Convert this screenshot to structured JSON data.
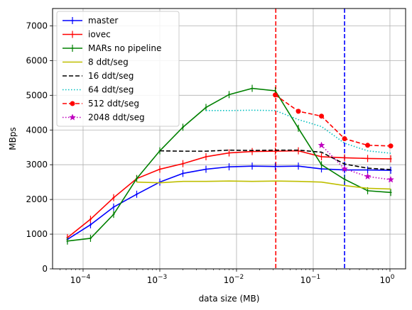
{
  "chart_data": {
    "type": "line",
    "xlabel": "data size (MB)",
    "ylabel": "MBps",
    "xscale": "log",
    "xlim": [
      4e-05,
      1.6
    ],
    "ylim": [
      0,
      7500
    ],
    "grid": true,
    "legend_position": "top-left",
    "y_ticks": [
      0,
      1000,
      2000,
      3000,
      4000,
      5000,
      6000,
      7000
    ],
    "x_ticks": [
      {
        "value": 0.0001,
        "base": "10",
        "exp": "−4"
      },
      {
        "value": 0.001,
        "base": "10",
        "exp": "−3"
      },
      {
        "value": 0.01,
        "base": "10",
        "exp": "−2"
      },
      {
        "value": 0.1,
        "base": "10",
        "exp": "−1"
      },
      {
        "value": 1,
        "base": "10",
        "exp": "0"
      }
    ],
    "vlines": [
      {
        "x": 0.0325,
        "color": "#ff0000"
      },
      {
        "x": 0.256,
        "color": "#0000ff"
      }
    ],
    "series": [
      {
        "name": "master",
        "color": "#0000ff",
        "style": "solid",
        "marker": "plus",
        "x": [
          6.25e-05,
          0.000125,
          0.00025,
          0.0005,
          0.001,
          0.002,
          0.004,
          0.008,
          0.016,
          0.032,
          0.064,
          0.128,
          0.256,
          0.512,
          1.024
        ],
        "y": [
          850,
          1270,
          1780,
          2150,
          2500,
          2750,
          2870,
          2940,
          2960,
          2950,
          2960,
          2880,
          2850,
          2850,
          2840
        ]
      },
      {
        "name": "iovec",
        "color": "#ff0000",
        "style": "solid",
        "marker": "plus",
        "x": [
          6.25e-05,
          0.000125,
          0.00025,
          0.0005,
          0.001,
          0.002,
          0.004,
          0.008,
          0.016,
          0.032,
          0.064,
          0.128,
          0.256,
          0.512,
          1.024
        ],
        "y": [
          900,
          1430,
          2050,
          2600,
          2870,
          3030,
          3230,
          3340,
          3380,
          3390,
          3400,
          3230,
          3200,
          3180,
          3170
        ]
      },
      {
        "name": "MARs no pipeline",
        "color": "#008000",
        "style": "solid",
        "marker": "plus",
        "x": [
          6.25e-05,
          0.000125,
          0.00025,
          0.0005,
          0.001,
          0.002,
          0.004,
          0.008,
          0.016,
          0.032,
          0.064,
          0.128,
          0.256,
          0.512,
          1.024
        ],
        "y": [
          800,
          880,
          1570,
          2600,
          3400,
          4080,
          4650,
          5020,
          5200,
          5130,
          4050,
          3000,
          2580,
          2250,
          2200
        ]
      },
      {
        "name": "8 ddt/seg",
        "color": "#bfbf00",
        "style": "solid",
        "marker": "none",
        "x": [
          0.0005,
          0.001,
          0.002,
          0.004,
          0.008,
          0.016,
          0.032,
          0.064,
          0.128,
          0.256,
          0.512,
          1.024
        ],
        "y": [
          2500,
          2480,
          2520,
          2520,
          2530,
          2520,
          2530,
          2520,
          2500,
          2400,
          2320,
          2300
        ]
      },
      {
        "name": "16 ddt/seg",
        "color": "#000000",
        "style": "dashed",
        "marker": "none",
        "x": [
          0.001,
          0.002,
          0.004,
          0.008,
          0.016,
          0.032,
          0.064,
          0.128,
          0.256,
          0.512,
          1.024
        ],
        "y": [
          3400,
          3390,
          3390,
          3420,
          3410,
          3420,
          3420,
          3360,
          3020,
          2900,
          2860
        ]
      },
      {
        "name": "64 ddt/seg",
        "color": "#00bfbf",
        "style": "dotted",
        "marker": "none",
        "x": [
          0.004,
          0.008,
          0.016,
          0.032,
          0.064,
          0.128,
          0.256,
          0.512,
          1.024
        ],
        "y": [
          4560,
          4560,
          4570,
          4560,
          4300,
          4100,
          3620,
          3400,
          3330
        ]
      },
      {
        "name": "512 ddt/seg",
        "color": "#ff0000",
        "style": "dashed",
        "marker": "circle",
        "x": [
          0.032,
          0.064,
          0.128,
          0.256,
          0.512,
          1.024
        ],
        "y": [
          5010,
          4540,
          4400,
          3750,
          3560,
          3540
        ]
      },
      {
        "name": "2048 ddt/seg",
        "color": "#bf00bf",
        "style": "dotted",
        "marker": "star",
        "x": [
          0.128,
          0.256,
          0.512,
          1.024
        ],
        "y": [
          3560,
          2880,
          2660,
          2570
        ]
      }
    ]
  }
}
